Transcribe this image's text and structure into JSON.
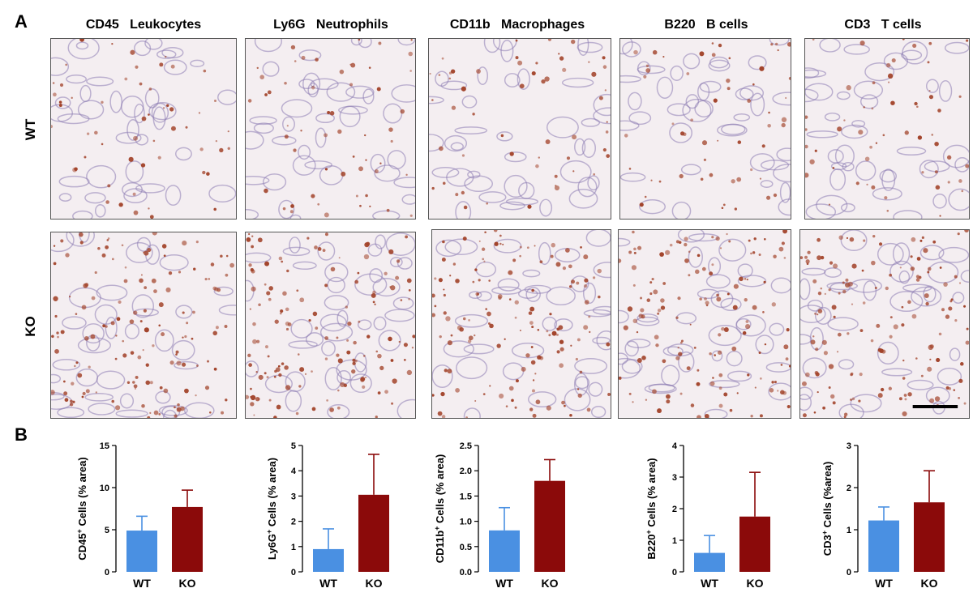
{
  "panel_labels": {
    "a": "A",
    "b": "B"
  },
  "column_titles": [
    "CD45   Leukocytes",
    "Ly6G   Neutrophils",
    "CD11b   Macrophages",
    "B220   B cells",
    "CD3   T cells"
  ],
  "row_labels": [
    "WT",
    "KO"
  ],
  "colors": {
    "wt": "#4a90e2",
    "ko": "#8b0a0a",
    "tissue_bg": "#f4eef1",
    "stain": "#a2432a",
    "hematoxylin": "#8c7cb3"
  },
  "chart_data": [
    {
      "type": "bar",
      "ylabel_main": "CD45",
      "ylabel_sup": "+",
      "ylabel_rest": " Cells (% area)",
      "categories": [
        "WT",
        "KO"
      ],
      "values": [
        4.9,
        7.7
      ],
      "errors": [
        1.7,
        2.0
      ],
      "ylim": [
        0,
        15
      ],
      "yticks": [
        0,
        5,
        10,
        15
      ],
      "decimals": 0
    },
    {
      "type": "bar",
      "ylabel_main": "Ly6G",
      "ylabel_sup": "+",
      "ylabel_rest": " Cells (% area)",
      "categories": [
        "WT",
        "KO"
      ],
      "values": [
        0.9,
        3.05
      ],
      "errors": [
        0.8,
        1.6
      ],
      "ylim": [
        0,
        5
      ],
      "yticks": [
        0,
        1,
        2,
        3,
        4,
        5
      ],
      "decimals": 0
    },
    {
      "type": "bar",
      "ylabel_main": "CD11b",
      "ylabel_sup": "+",
      "ylabel_rest": " Cells (% area)",
      "categories": [
        "WT",
        "KO"
      ],
      "values": [
        0.82,
        1.8
      ],
      "errors": [
        0.45,
        0.42
      ],
      "ylim": [
        0,
        2.5
      ],
      "yticks": [
        0,
        0.5,
        1.0,
        1.5,
        2.0,
        2.5
      ],
      "decimals": 1
    },
    {
      "type": "bar",
      "ylabel_main": "B220",
      "ylabel_sup": "+",
      "ylabel_rest": " Cells (% area)",
      "categories": [
        "WT",
        "KO"
      ],
      "values": [
        0.6,
        1.75
      ],
      "errors": [
        0.55,
        1.4
      ],
      "ylim": [
        0,
        4
      ],
      "yticks": [
        0,
        1,
        2,
        3,
        4
      ],
      "decimals": 0
    },
    {
      "type": "bar",
      "ylabel_main": "CD3",
      "ylabel_sup": "+",
      "ylabel_rest": " Cells (%area)",
      "categories": [
        "WT",
        "KO"
      ],
      "values": [
        1.22,
        1.65
      ],
      "errors": [
        0.32,
        0.75
      ],
      "ylim": [
        0,
        3
      ],
      "yticks": [
        0,
        1,
        2,
        3
      ],
      "decimals": 0
    }
  ]
}
